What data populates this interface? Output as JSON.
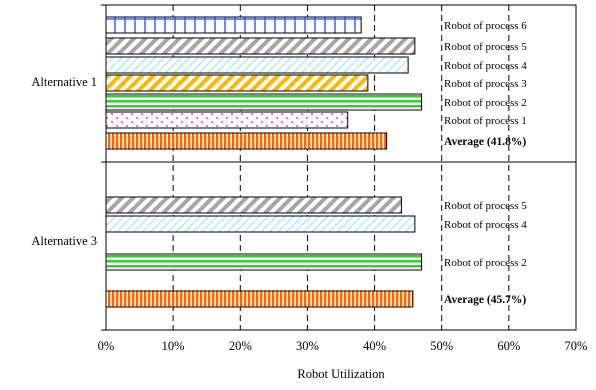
{
  "chart_data": {
    "type": "bar",
    "orientation": "horizontal",
    "xlabel": "Robot Utilization",
    "xlim": [
      0,
      70
    ],
    "x_ticks": [
      "0%",
      "10%",
      "20%",
      "30%",
      "40%",
      "50%",
      "60%",
      "70%"
    ],
    "grid": "vertical dashed",
    "groups": [
      {
        "name": "Alternative 1",
        "bars": [
          {
            "label": "Robot of process 6",
            "value": 38,
            "pattern": "grid-blue",
            "color": "#3366ff"
          },
          {
            "label": "Robot of process 5",
            "value": 46,
            "pattern": "diag-gray",
            "color": "#a6a6a6"
          },
          {
            "label": "Robot of process 4",
            "value": 45,
            "pattern": "diag-lightcyan",
            "color": "#9ee8ee"
          },
          {
            "label": "Robot of process 3",
            "value": 39,
            "pattern": "diag-orange",
            "color": "#ffb800"
          },
          {
            "label": "Robot of process 2",
            "value": 47,
            "pattern": "hstripe-green",
            "color": "#33cc33"
          },
          {
            "label": "Robot of process 1",
            "value": 36,
            "pattern": "dots-magenta",
            "color": "#ff33cc"
          },
          {
            "label": "Average (41.8%)",
            "value": 41.8,
            "pattern": "vstripe-orange",
            "color": "#ff6600",
            "is_average": true
          }
        ]
      },
      {
        "name": "Alternative 3",
        "bars": [
          {
            "label": "Robot of process 5",
            "value": 44,
            "pattern": "diag-gray",
            "color": "#a6a6a6"
          },
          {
            "label": "Robot of process 4",
            "value": 46,
            "pattern": "diag-lightcyan",
            "color": "#9ee8ee"
          },
          {
            "label": "Robot of process 2",
            "value": 47,
            "pattern": "hstripe-green",
            "color": "#33cc33"
          },
          {
            "label": "Average (45.7%)",
            "value": 45.7,
            "pattern": "vstripe-orange",
            "color": "#ff6600",
            "is_average": true
          }
        ]
      }
    ]
  }
}
